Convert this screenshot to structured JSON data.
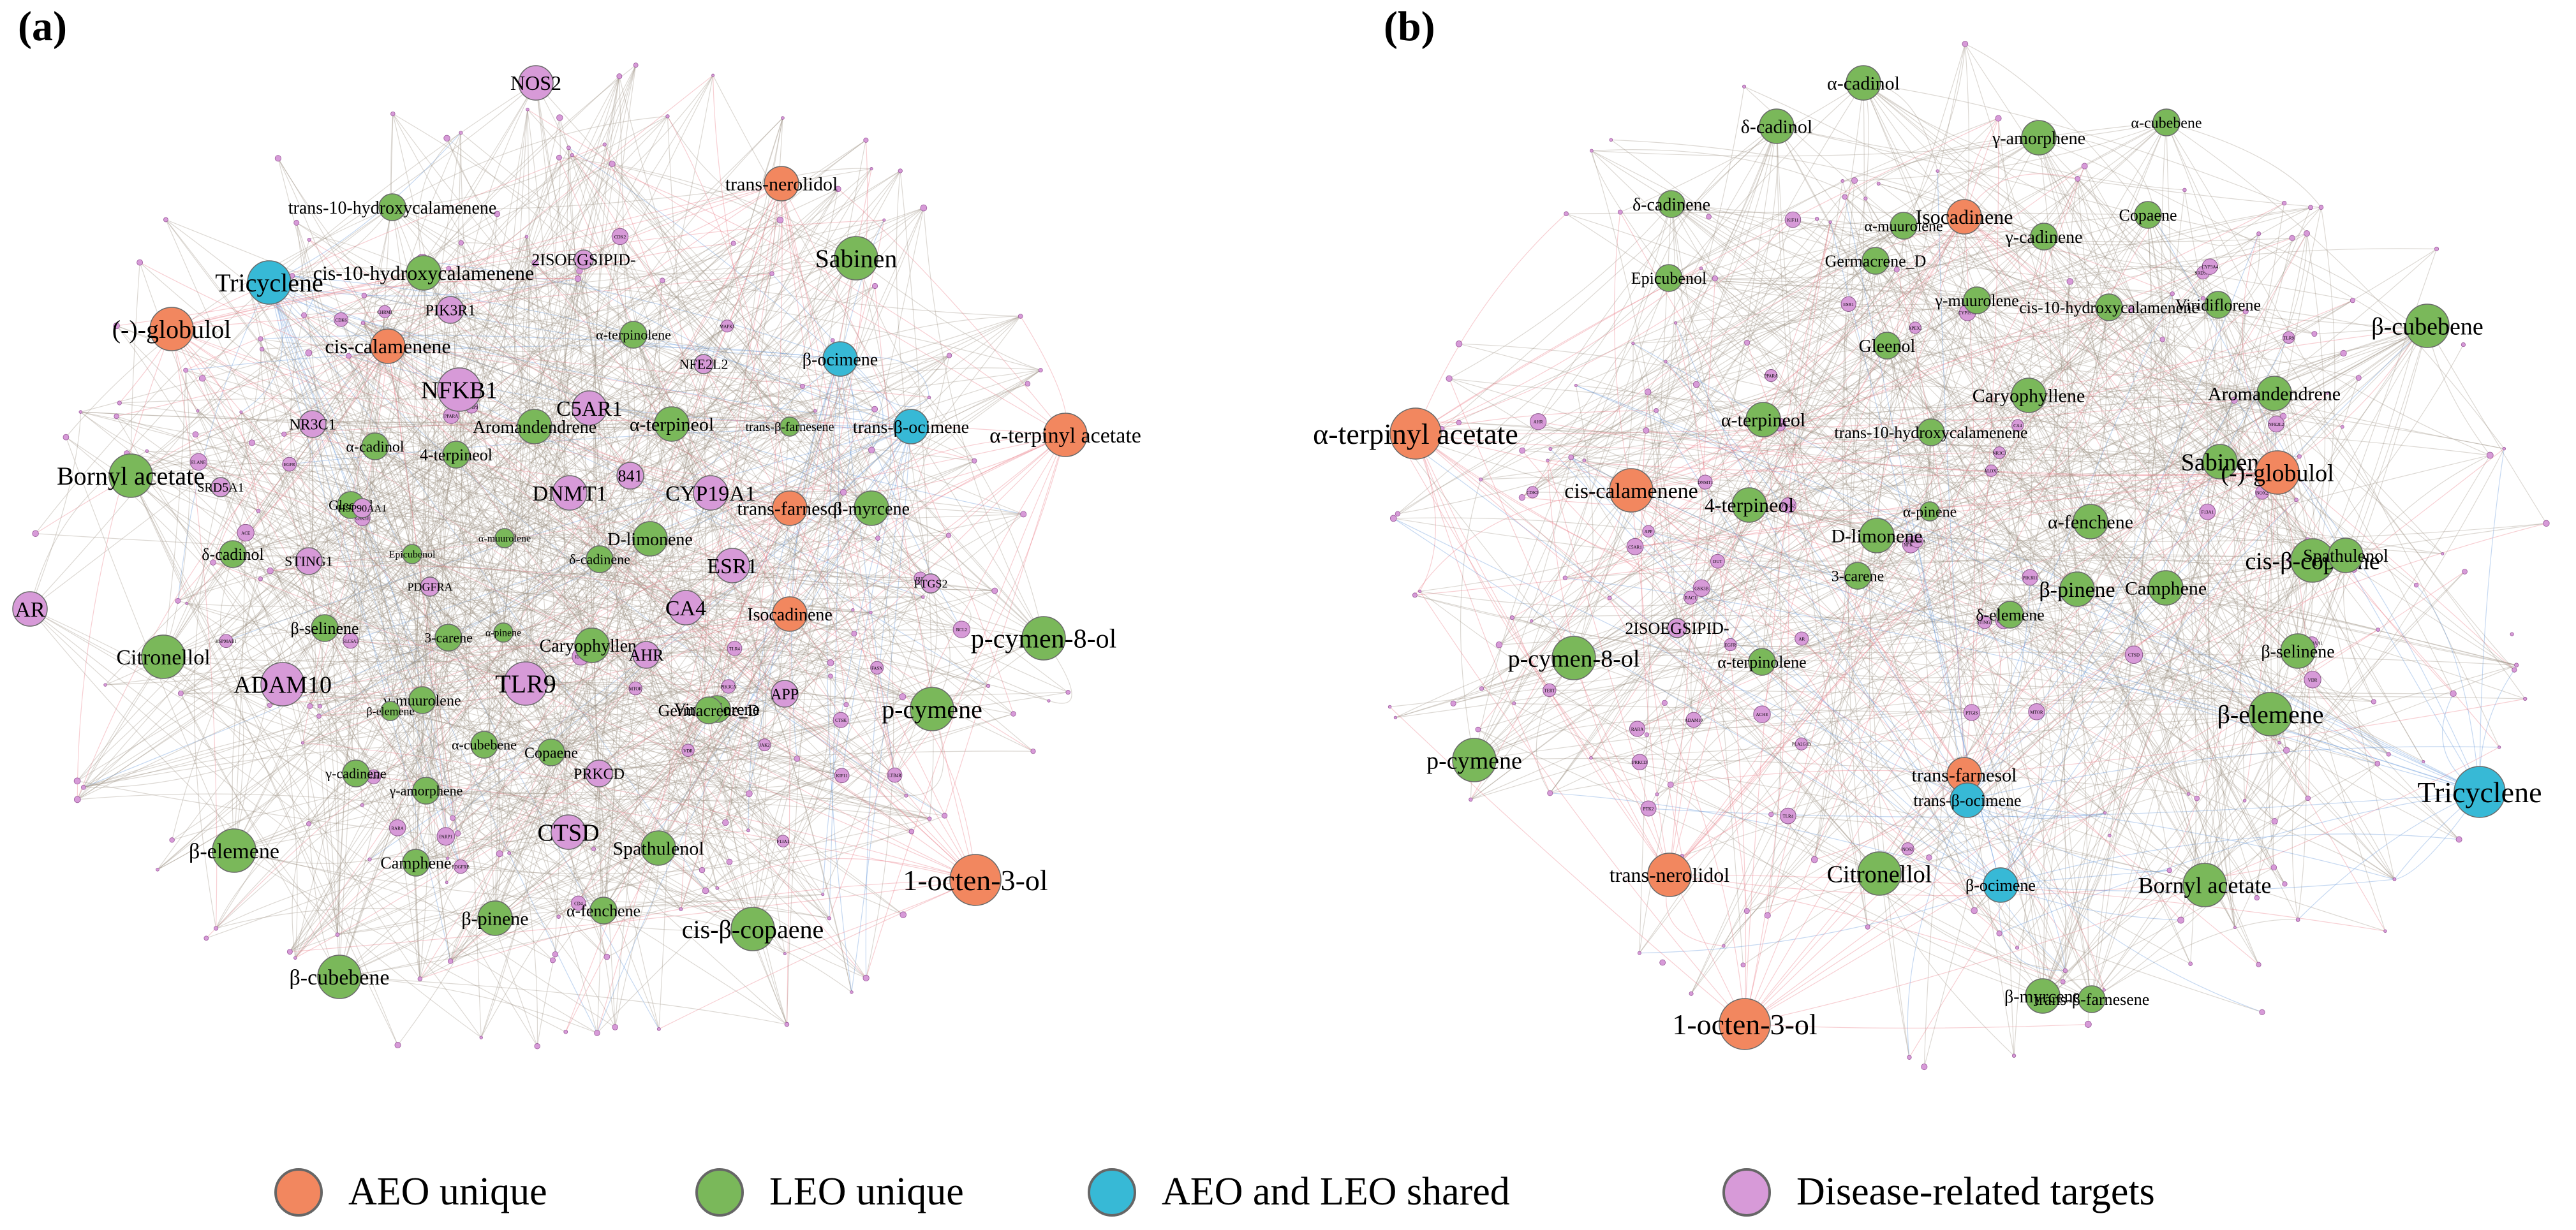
{
  "colors": {
    "aeo": "#f2875f",
    "leo": "#7ab85a",
    "shared": "#37b9d6",
    "target": "#d79ad8",
    "edge_gray": "#9a9080",
    "edge_red": "#e7737f",
    "edge_blue": "#5a8fd6"
  },
  "panel_a": {
    "label": "(a)",
    "nodes": [
      {
        "name": "NOS2",
        "kind": "target",
        "size": "m"
      },
      {
        "name": "trans-nerolidol",
        "kind": "aeo",
        "size": "m"
      },
      {
        "name": "trans-10-hydroxycalamenene",
        "kind": "leo",
        "size": "s"
      },
      {
        "name": "Sabinen",
        "kind": "leo",
        "size": "l"
      },
      {
        "name": "Tricyclene",
        "kind": "shared",
        "size": "l"
      },
      {
        "name": "cis-10-hydroxycalamenene",
        "kind": "leo",
        "size": "m"
      },
      {
        "name": "2ISOEGSIPID-",
        "kind": "target",
        "size": "xs"
      },
      {
        "name": "(-)-globulol",
        "kind": "aeo",
        "size": "l"
      },
      {
        "name": "PIK3R1",
        "kind": "target",
        "size": "s"
      },
      {
        "name": "cis-calamenene",
        "kind": "aeo",
        "size": "m"
      },
      {
        "name": "α-terpinolene",
        "kind": "leo",
        "size": "s"
      },
      {
        "name": "β-ocimene",
        "kind": "shared",
        "size": "m"
      },
      {
        "name": "NFE2L2",
        "kind": "target",
        "size": "xs"
      },
      {
        "name": "NFKB1",
        "kind": "target",
        "size": "l"
      },
      {
        "name": "C5AR1",
        "kind": "target",
        "size": "m"
      },
      {
        "name": "NR3C1",
        "kind": "target",
        "size": "s"
      },
      {
        "name": "α-terpineol",
        "kind": "leo",
        "size": "m"
      },
      {
        "name": "trans-β-farnesene",
        "kind": "leo",
        "size": "xs"
      },
      {
        "name": "trans-β-ocimene",
        "kind": "shared",
        "size": "m"
      },
      {
        "name": "α-terpinyl acetate",
        "kind": "aeo",
        "size": "l"
      },
      {
        "name": "α-cadinol",
        "kind": "leo",
        "size": "s"
      },
      {
        "name": "Aromandendrene",
        "kind": "leo",
        "size": "m"
      },
      {
        "name": "4-terpineol",
        "kind": "leo",
        "size": "s"
      },
      {
        "name": "Bornyl acetate",
        "kind": "leo",
        "size": "l"
      },
      {
        "name": "DNMT1",
        "kind": "target",
        "size": "m"
      },
      {
        "name": "841",
        "kind": "target",
        "size": "s"
      },
      {
        "name": "CYP19A1",
        "kind": "target",
        "size": "m"
      },
      {
        "name": "SRD5A1",
        "kind": "target",
        "size": "xs"
      },
      {
        "name": "Gleenol",
        "kind": "leo",
        "size": "s"
      },
      {
        "name": "HSP90AA1",
        "kind": "target",
        "size": "xs"
      },
      {
        "name": "trans-farnesol",
        "kind": "aeo",
        "size": "m"
      },
      {
        "name": "β-myrcene",
        "kind": "leo",
        "size": "m"
      },
      {
        "name": "D-limonene",
        "kind": "leo",
        "size": "m"
      },
      {
        "name": "δ-cadinol",
        "kind": "leo",
        "size": "s"
      },
      {
        "name": "STING1",
        "kind": "target",
        "size": "s"
      },
      {
        "name": "Epicubenol",
        "kind": "leo",
        "size": "xs"
      },
      {
        "name": "α-muurolene",
        "kind": "leo",
        "size": "xs"
      },
      {
        "name": "δ-cadinene",
        "kind": "leo",
        "size": "s"
      },
      {
        "name": "ESR1",
        "kind": "target",
        "size": "m"
      },
      {
        "name": "AR",
        "kind": "target",
        "size": "m"
      },
      {
        "name": "PDGFRA",
        "kind": "target",
        "size": "xs"
      },
      {
        "name": "CA4",
        "kind": "target",
        "size": "m"
      },
      {
        "name": "Isocadinene",
        "kind": "aeo",
        "size": "m"
      },
      {
        "name": "PTGS2",
        "kind": "target",
        "size": "xs"
      },
      {
        "name": "β-selinene",
        "kind": "leo",
        "size": "s"
      },
      {
        "name": "3-carene",
        "kind": "leo",
        "size": "s"
      },
      {
        "name": "α-pinene",
        "kind": "leo",
        "size": "xs"
      },
      {
        "name": "Caryophyllene",
        "kind": "leo",
        "size": "m"
      },
      {
        "name": "AHR",
        "kind": "target",
        "size": "s"
      },
      {
        "name": "p-cymen-8-ol",
        "kind": "leo",
        "size": "l"
      },
      {
        "name": "Citronellol",
        "kind": "leo",
        "size": "l"
      },
      {
        "name": "ADAM10",
        "kind": "target",
        "size": "l"
      },
      {
        "name": "γ-muurolene",
        "kind": "leo",
        "size": "s"
      },
      {
        "name": "TLR9",
        "kind": "target",
        "size": "l"
      },
      {
        "name": "β-elemene",
        "kind": "leo",
        "size": "xs"
      },
      {
        "name": "Viridiflorene",
        "kind": "leo",
        "size": "s"
      },
      {
        "name": "Germacrene_D",
        "kind": "leo",
        "size": "s"
      },
      {
        "name": "APP",
        "kind": "target",
        "size": "s"
      },
      {
        "name": "p-cymene",
        "kind": "leo",
        "size": "l"
      },
      {
        "name": "α-cubebene",
        "kind": "leo",
        "size": "s"
      },
      {
        "name": "Copaene",
        "kind": "leo",
        "size": "s"
      },
      {
        "name": "γ-cadinene",
        "kind": "leo",
        "size": "s"
      },
      {
        "name": "γ-amorphene",
        "kind": "leo",
        "size": "s"
      },
      {
        "name": "PRKCD",
        "kind": "target",
        "size": "s"
      },
      {
        "name": "CTSD",
        "kind": "target",
        "size": "m"
      },
      {
        "name": "Spathulenol",
        "kind": "leo",
        "size": "m"
      },
      {
        "name": "1-octen-3-ol",
        "kind": "aeo",
        "size": "xl"
      },
      {
        "name": "β-elemene",
        "kind": "leo",
        "size": "l"
      },
      {
        "name": "Camphene",
        "kind": "leo",
        "size": "s"
      },
      {
        "name": "β-pinene",
        "kind": "leo",
        "size": "m"
      },
      {
        "name": "α-fenchene",
        "kind": "leo",
        "size": "s"
      },
      {
        "name": "cis-β-copaene",
        "kind": "leo",
        "size": "l"
      },
      {
        "name": "β-cubebene",
        "kind": "leo",
        "size": "l"
      }
    ],
    "small_targets": [
      "CD4",
      "PDGFRB",
      "MMP9",
      "EGFR",
      "RAC1",
      "SLC6A3",
      "HSP90AB1",
      "KIF11",
      "DUT",
      "PPARA",
      "RARA",
      "PTK2",
      "MTOR",
      "FASN",
      "PIK3CA",
      "F13A1",
      "EGFR",
      "CDK2",
      "ACE",
      "TLR4",
      "VDR",
      "LTB4R",
      "CDK6",
      "GSK3B",
      "PARP1",
      "ELANE",
      "BCL2",
      "MAPK1",
      "CHRM1",
      "JAK2",
      "CTSK"
    ]
  },
  "panel_b": {
    "label": "(b)",
    "nodes": [
      {
        "name": "α-cadinol",
        "kind": "leo",
        "size": "m"
      },
      {
        "name": "δ-cadinol",
        "kind": "leo",
        "size": "m"
      },
      {
        "name": "γ-amorphene",
        "kind": "leo",
        "size": "m"
      },
      {
        "name": "α-cubebene",
        "kind": "leo",
        "size": "s"
      },
      {
        "name": "δ-cadinene",
        "kind": "leo",
        "size": "s"
      },
      {
        "name": "α-muurolene",
        "kind": "leo",
        "size": "s"
      },
      {
        "name": "Isocadinene",
        "kind": "aeo",
        "size": "m"
      },
      {
        "name": "Copaene",
        "kind": "leo",
        "size": "s"
      },
      {
        "name": "Germacrene_D",
        "kind": "leo",
        "size": "s"
      },
      {
        "name": "γ-cadinene",
        "kind": "leo",
        "size": "s"
      },
      {
        "name": "Epicubenol",
        "kind": "leo",
        "size": "s"
      },
      {
        "name": "γ-muurolene",
        "kind": "leo",
        "size": "s"
      },
      {
        "name": "cis-10-hydroxycalamenene",
        "kind": "leo",
        "size": "s"
      },
      {
        "name": "Viridiflorene",
        "kind": "leo",
        "size": "s"
      },
      {
        "name": "β-cubebene",
        "kind": "leo",
        "size": "l"
      },
      {
        "name": "Gleenol",
        "kind": "leo",
        "size": "s"
      },
      {
        "name": "Caryophyllene",
        "kind": "leo",
        "size": "m"
      },
      {
        "name": "Aromandendrene",
        "kind": "leo",
        "size": "m"
      },
      {
        "name": "α-terpineol",
        "kind": "leo",
        "size": "m"
      },
      {
        "name": "trans-10-hydroxycalamenene",
        "kind": "leo",
        "size": "s"
      },
      {
        "name": "α-terpinyl acetate",
        "kind": "aeo",
        "size": "xl"
      },
      {
        "name": "Sabinen",
        "kind": "leo",
        "size": "m"
      },
      {
        "name": "(-)-globulol",
        "kind": "aeo",
        "size": "l"
      },
      {
        "name": "cis-calamenene",
        "kind": "aeo",
        "size": "l"
      },
      {
        "name": "4-terpineol",
        "kind": "leo",
        "size": "m"
      },
      {
        "name": "α-pinene",
        "kind": "leo",
        "size": "xs"
      },
      {
        "name": "α-fenchene",
        "kind": "leo",
        "size": "m"
      },
      {
        "name": "D-limonene",
        "kind": "leo",
        "size": "m"
      },
      {
        "name": "cis-β-copaene",
        "kind": "leo",
        "size": "l"
      },
      {
        "name": "Spathulenol",
        "kind": "leo",
        "size": "m"
      },
      {
        "name": "3-carene",
        "kind": "leo",
        "size": "s"
      },
      {
        "name": "β-pinene",
        "kind": "leo",
        "size": "m"
      },
      {
        "name": "Camphene",
        "kind": "leo",
        "size": "m"
      },
      {
        "name": "2ISOEGSIPID-",
        "kind": "target",
        "size": "xs"
      },
      {
        "name": "δ-elemene",
        "kind": "leo",
        "size": "s"
      },
      {
        "name": "p-cymen-8-ol",
        "kind": "leo",
        "size": "l"
      },
      {
        "name": "β-selinene",
        "kind": "leo",
        "size": "m"
      },
      {
        "name": "α-terpinolene",
        "kind": "leo",
        "size": "s"
      },
      {
        "name": "β-elemene",
        "kind": "leo",
        "size": "l"
      },
      {
        "name": "p-cymene",
        "kind": "leo",
        "size": "l"
      },
      {
        "name": "trans-farnesol",
        "kind": "aeo",
        "size": "m"
      },
      {
        "name": "Tricyclene",
        "kind": "shared",
        "size": "xl"
      },
      {
        "name": "trans-β-ocimene",
        "kind": "shared",
        "size": "m"
      },
      {
        "name": "trans-nerolidol",
        "kind": "aeo",
        "size": "l"
      },
      {
        "name": "Citronellol",
        "kind": "leo",
        "size": "l"
      },
      {
        "name": "β-ocimene",
        "kind": "shared",
        "size": "m"
      },
      {
        "name": "Bornyl acetate",
        "kind": "leo",
        "size": "l"
      },
      {
        "name": "1-octen-3-ol",
        "kind": "aeo",
        "size": "xl"
      },
      {
        "name": "β-myrcene",
        "kind": "leo",
        "size": "m"
      },
      {
        "name": "trans-β-farnesene",
        "kind": "leo",
        "size": "s"
      }
    ],
    "small_targets": [
      "NOS2",
      "PIK3R1",
      "NFKB1",
      "NR3C1",
      "C5AR1",
      "NFE2L2",
      "DNMT1",
      "CYP19A1",
      "ESR1",
      "AR",
      "CA4",
      "PTGS2",
      "AHR",
      "TLR9",
      "APP",
      "CTSD",
      "PRKCD",
      "ADAM10",
      "STING1",
      "SRD5A1",
      "HSP90AA1",
      "PDGFRA",
      "RARA",
      "MTOR",
      "PTK2",
      "EGFR",
      "MMP9",
      "KIF11",
      "DUT",
      "PPARA",
      "CDK2",
      "ACE",
      "TLR4",
      "VDR",
      "F13A1",
      "RAC1",
      "PLA2G1B",
      "APEX1",
      "CASP8",
      "CYP3A4",
      "ALOX5",
      "PTGIS",
      "ACHE",
      "NOX2",
      "TERT",
      "GSK3B"
    ]
  },
  "legend": [
    {
      "kind": "aeo",
      "label": "AEO unique"
    },
    {
      "kind": "leo",
      "label": "LEO unique"
    },
    {
      "kind": "shared",
      "label": "AEO and LEO shared"
    },
    {
      "kind": "target",
      "label": "Disease-related targets"
    }
  ]
}
